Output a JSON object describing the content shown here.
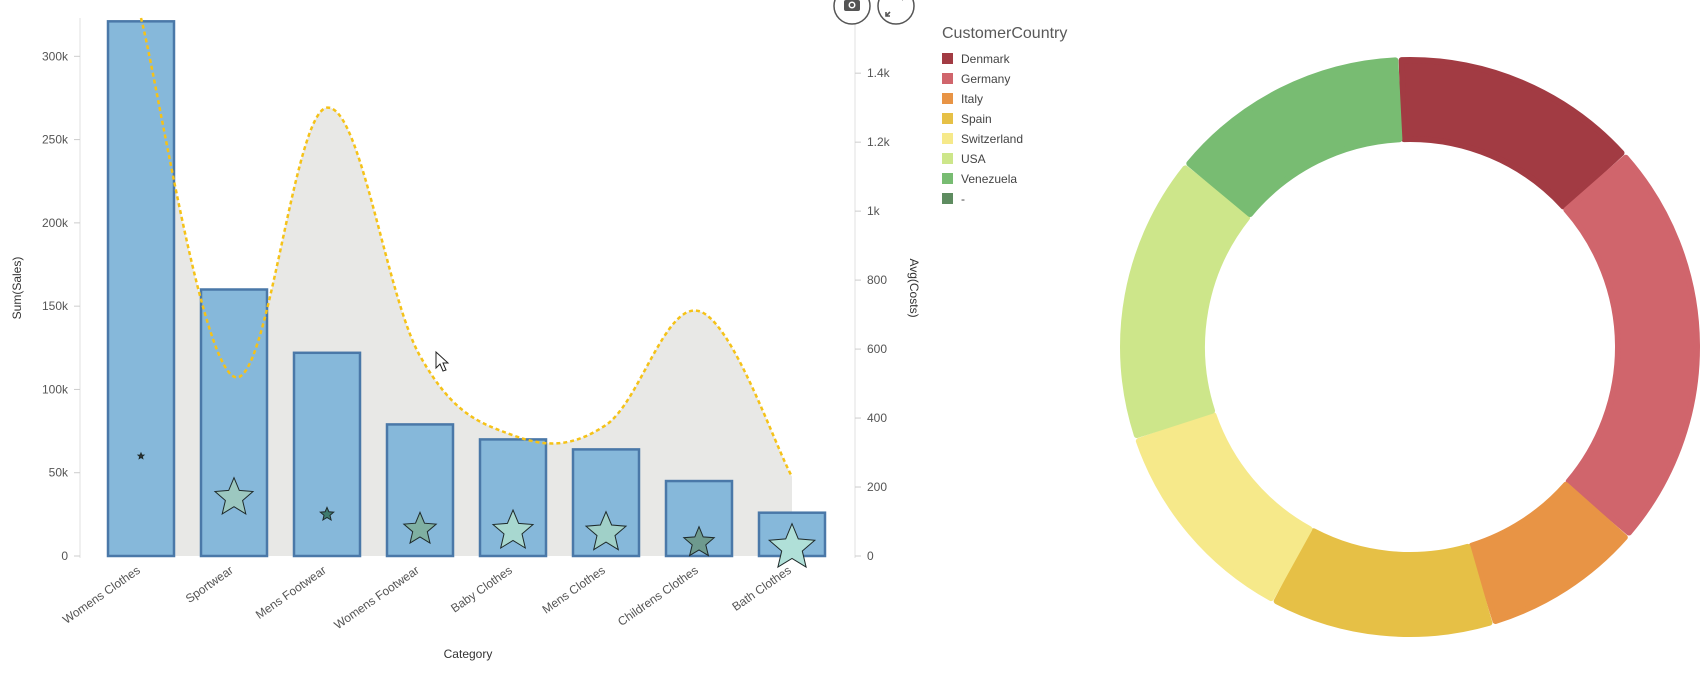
{
  "toolbar": {
    "camera_icon": "camera-icon",
    "expand_icon": "expand-icon"
  },
  "chart_data": [
    {
      "type": "bar",
      "xlabel": "Category",
      "ylabel": "Sum(Sales)",
      "y2label": "Avg(Costs)",
      "categories": [
        "Womens Clothes",
        "Sportwear",
        "Mens Footwear",
        "Womens Footwear",
        "Baby Clothes",
        "Mens Clothes",
        "Childrens Clothes",
        "Bath Clothes"
      ],
      "ylim": [
        0,
        323000
      ],
      "yticks": [
        0,
        50000,
        100000,
        150000,
        200000,
        250000,
        300000
      ],
      "ytick_labels": [
        "0",
        "50k",
        "100k",
        "150k",
        "200k",
        "250k",
        "300k"
      ],
      "y2lim": [
        0,
        1560
      ],
      "y2ticks": [
        0,
        200,
        400,
        600,
        800,
        1000,
        1200,
        1400
      ],
      "y2tick_labels": [
        "0",
        "200",
        "400",
        "600",
        "800",
        "1k",
        "1.2k",
        "1.4k"
      ],
      "grid": false,
      "series": [
        {
          "type": "bar",
          "color": "#86b8da",
          "stroke": "#4a78a8",
          "values": [
            321000,
            160000,
            122000,
            79000,
            70000,
            64000,
            45000,
            26000
          ]
        },
        {
          "type": "area-spline",
          "color": "#f5c218",
          "fill": "#e8e8e6",
          "dash": true,
          "values": [
            1560,
            520,
            1300,
            580,
            350,
            380,
            710,
            230
          ]
        },
        {
          "type": "marker-star",
          "colors": [
            "#333333",
            "#9cc8c0",
            "#3e7a6e",
            "#7fb0a2",
            "#a8d8d0",
            "#a0d0c8",
            "#6e9a8e",
            "#b0e0d8"
          ],
          "sizes": [
            3,
            20,
            7,
            17,
            21,
            21,
            16,
            24
          ],
          "values": [
            60000,
            35000,
            25000,
            16000,
            15000,
            14000,
            8000,
            5000
          ]
        }
      ]
    },
    {
      "type": "pie",
      "donut": true,
      "legend_title": "CustomerCountry",
      "legend_position": "top-left",
      "labels": [
        "Denmark",
        "Germany",
        "Italy",
        "Spain",
        "Switzerland",
        "USA",
        "Venezuela",
        "-"
      ],
      "colors": [
        "#a23b43",
        "#d0656c",
        "#e89445",
        "#e6c046",
        "#f6e98a",
        "#cde68a",
        "#78bc72",
        "#5e8c60"
      ],
      "values": [
        14,
        23,
        9,
        12.5,
        12,
        16,
        13.5,
        0
      ]
    }
  ]
}
